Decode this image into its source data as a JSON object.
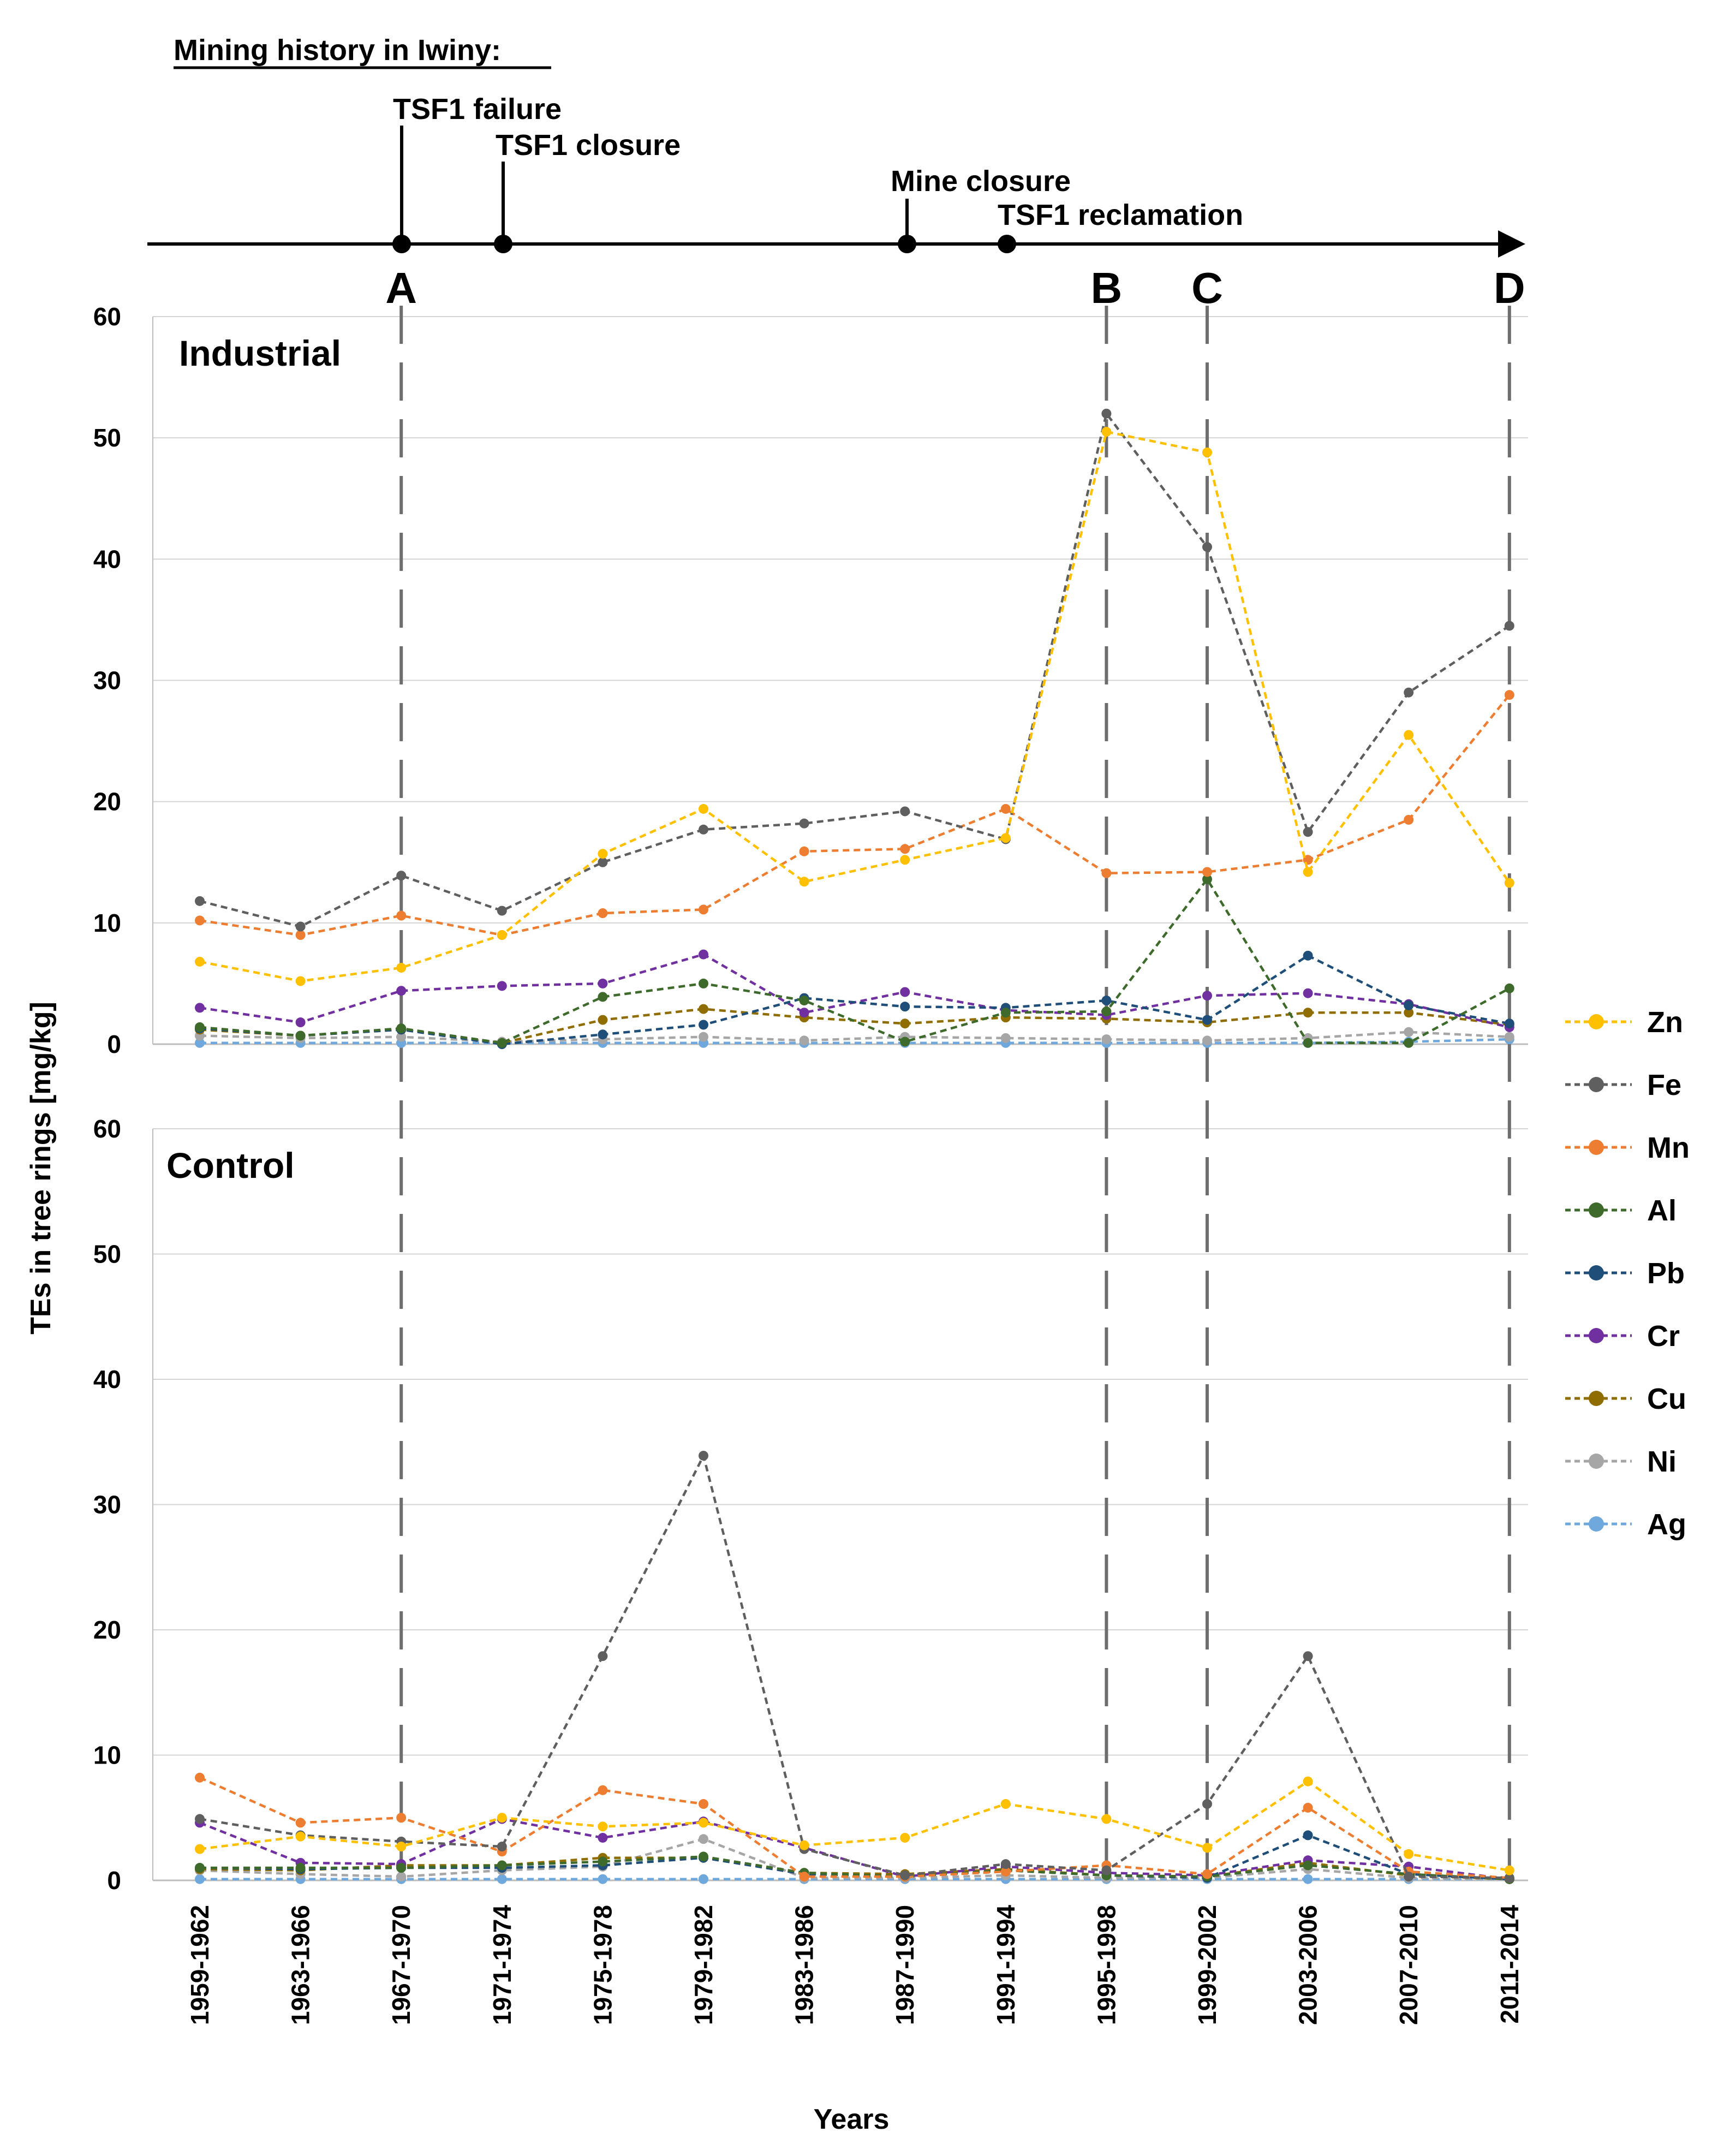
{
  "timeline": {
    "heading": "Mining history in Iwiny:",
    "events": [
      {
        "label": "TSF1 failure",
        "year": 1967
      },
      {
        "label": "TSF1 closure",
        "year": 1971
      },
      {
        "label": "Mine closure",
        "year": 1987
      },
      {
        "label": "TSF1 reclamation",
        "year": 1991
      }
    ]
  },
  "chart_data": {
    "type": "line",
    "categories": [
      "1959-1962",
      "1963-1966",
      "1967-1970",
      "1971-1974",
      "1975-1978",
      "1979-1982",
      "1983-1986",
      "1987-1990",
      "1991-1994",
      "1995-1998",
      "1999-2002",
      "2003-2006",
      "2007-2010",
      "2011-2014"
    ],
    "ylabel": "TEs in tree rings [mg/kg]",
    "xlabel": "Years",
    "ylim": [
      0,
      60
    ],
    "yticks": [
      0,
      10,
      20,
      30,
      40,
      50,
      60
    ],
    "markers": [
      {
        "label": "A",
        "category": "1967-1970"
      },
      {
        "label": "B",
        "category": "1995-1998"
      },
      {
        "label": "C",
        "category": "1999-2002"
      },
      {
        "label": "D",
        "category": "2011-2014"
      }
    ],
    "legend": [
      "Zn",
      "Fe",
      "Mn",
      "Al",
      "Pb",
      "Cr",
      "Cu",
      "Ni",
      "Ag"
    ],
    "colors": {
      "Zn": "#ffc000",
      "Fe": "#5f5f5f",
      "Mn": "#ed7d31",
      "Al": "#3e6b2c",
      "Pb": "#1f4e79",
      "Cr": "#7030a0",
      "Cu": "#8f6d00",
      "Ni": "#a6a6a6",
      "Ag": "#6fa8dc"
    },
    "panels": [
      {
        "title": "Industrial",
        "series": [
          {
            "name": "Zn",
            "values": [
              6.8,
              5.2,
              6.3,
              9.0,
              15.7,
              19.4,
              13.4,
              15.2,
              17.0,
              50.5,
              48.8,
              14.2,
              25.5,
              13.3
            ]
          },
          {
            "name": "Fe",
            "values": [
              11.8,
              9.7,
              13.9,
              11.0,
              15.0,
              17.7,
              18.2,
              19.2,
              16.9,
              52.0,
              41.0,
              17.5,
              29.0,
              34.5
            ]
          },
          {
            "name": "Mn",
            "values": [
              10.2,
              9.0,
              10.6,
              9.0,
              10.8,
              11.1,
              15.9,
              16.1,
              19.4,
              14.1,
              14.2,
              15.2,
              18.5,
              28.8
            ]
          },
          {
            "name": "Al",
            "values": [
              1.4,
              0.7,
              1.3,
              0.1,
              3.9,
              5.0,
              3.6,
              0.2,
              2.6,
              2.7,
              13.6,
              0.1,
              0.1,
              4.6
            ]
          },
          {
            "name": "Pb",
            "values": [
              1.3,
              0.7,
              1.2,
              0.0,
              0.8,
              1.6,
              3.8,
              3.1,
              3.0,
              3.6,
              2.0,
              7.3,
              3.2,
              1.7
            ]
          },
          {
            "name": "Cr",
            "values": [
              3.0,
              1.8,
              4.4,
              4.8,
              5.0,
              7.4,
              2.6,
              4.3,
              2.8,
              2.4,
              4.0,
              4.2,
              3.3,
              1.4
            ]
          },
          {
            "name": "Cu",
            "values": [
              1.2,
              0.7,
              1.2,
              0.1,
              2.0,
              2.9,
              2.2,
              1.7,
              2.2,
              2.1,
              1.8,
              2.6,
              2.6,
              1.6
            ]
          },
          {
            "name": "Ni",
            "values": [
              0.7,
              0.5,
              0.6,
              0.2,
              0.4,
              0.6,
              0.3,
              0.6,
              0.5,
              0.4,
              0.3,
              0.5,
              1.0,
              0.6
            ]
          },
          {
            "name": "Ag",
            "values": [
              0.1,
              0.1,
              0.1,
              0.1,
              0.1,
              0.1,
              0.1,
              0.1,
              0.1,
              0.1,
              0.1,
              0.1,
              0.2,
              0.4
            ]
          }
        ]
      },
      {
        "title": "Control",
        "series": [
          {
            "name": "Zn",
            "values": [
              2.5,
              3.5,
              2.7,
              5.0,
              4.3,
              4.6,
              2.8,
              3.4,
              6.1,
              4.9,
              2.6,
              7.9,
              2.1,
              0.8
            ]
          },
          {
            "name": "Fe",
            "values": [
              4.9,
              3.6,
              3.1,
              2.7,
              17.9,
              33.9,
              2.5,
              0.4,
              1.3,
              0.8,
              6.1,
              17.9,
              0.3,
              0.2
            ]
          },
          {
            "name": "Mn",
            "values": [
              8.2,
              4.6,
              5.0,
              2.3,
              7.2,
              6.1,
              0.3,
              0.3,
              0.7,
              1.2,
              0.5,
              5.8,
              0.7,
              0.2
            ]
          },
          {
            "name": "Al",
            "values": [
              1.0,
              1.0,
              1.0,
              1.2,
              1.5,
              1.9,
              0.6,
              0.3,
              0.8,
              0.4,
              0.3,
              1.2,
              0.5,
              0.1
            ]
          },
          {
            "name": "Pb",
            "values": [
              1.0,
              0.9,
              1.0,
              1.0,
              1.2,
              1.8,
              0.5,
              0.3,
              0.8,
              0.4,
              0.2,
              3.6,
              0.5,
              0.1
            ]
          },
          {
            "name": "Cr",
            "values": [
              4.6,
              1.4,
              1.3,
              4.9,
              3.4,
              4.7,
              2.6,
              0.3,
              1.1,
              0.6,
              0.4,
              1.6,
              1.1,
              0.1
            ]
          },
          {
            "name": "Cu",
            "values": [
              0.9,
              0.8,
              1.2,
              1.2,
              1.8,
              1.8,
              0.6,
              0.5,
              0.9,
              0.4,
              0.3,
              1.4,
              0.4,
              0.1
            ]
          },
          {
            "name": "Ni",
            "values": [
              0.8,
              0.5,
              0.3,
              0.8,
              1.1,
              3.3,
              0.2,
              0.2,
              0.4,
              0.2,
              0.2,
              0.9,
              0.2,
              0.1
            ]
          },
          {
            "name": "Ag",
            "values": [
              0.1,
              0.1,
              0.1,
              0.1,
              0.1,
              0.1,
              0.1,
              0.1,
              0.1,
              0.1,
              0.1,
              0.1,
              0.1,
              0.1
            ]
          }
        ]
      }
    ]
  }
}
